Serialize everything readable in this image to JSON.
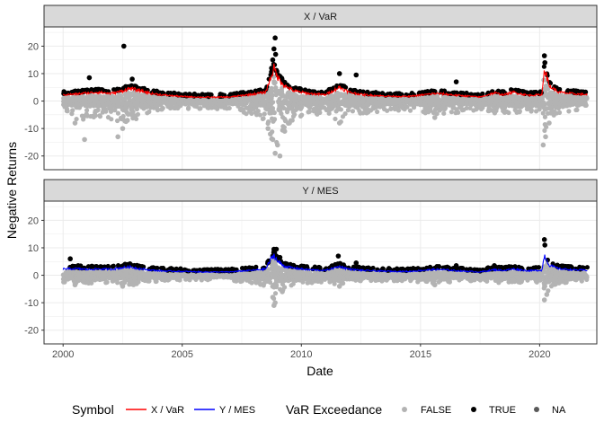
{
  "chart_data": {
    "type": "scatter",
    "xlabel": "Date",
    "ylabel": "Negative Returns",
    "xlim": [
      1999.2,
      2022.4
    ],
    "ylim": [
      -25,
      27
    ],
    "x_ticks": [
      2000,
      2005,
      2010,
      2015,
      2020
    ],
    "y_ticks": [
      -20,
      -10,
      0,
      10,
      20
    ],
    "grid": true,
    "legend_position": "bottom",
    "colors": {
      "x_var_line": "#ff0000",
      "y_mes_line": "#0000ff",
      "exceed_false": "#b3b3b3",
      "exceed_true": "#000000",
      "exceed_na": "#595959"
    },
    "legend": {
      "symbol_title": "Symbol",
      "symbol_items": [
        "X / VaR",
        "Y / MES"
      ],
      "exceed_title": "VaR Exceedance",
      "exceed_items": [
        "FALSE",
        "TRUE",
        "NA"
      ]
    },
    "panels": [
      {
        "strip": "X / VaR",
        "line_color_key": "x_var_line",
        "band_y": [
          [
            2000.0,
            2.5
          ],
          [
            2000.6,
            2.8
          ],
          [
            2001.0,
            3.2
          ],
          [
            2001.5,
            3.5
          ],
          [
            2002.0,
            3.0
          ],
          [
            2002.5,
            4.0
          ],
          [
            2002.8,
            5.0
          ],
          [
            2003.2,
            4.2
          ],
          [
            2003.7,
            3.0
          ],
          [
            2004.2,
            2.4
          ],
          [
            2005.0,
            1.8
          ],
          [
            2006.0,
            1.5
          ],
          [
            2007.0,
            1.6
          ],
          [
            2007.5,
            2.2
          ],
          [
            2008.0,
            2.8
          ],
          [
            2008.5,
            3.5
          ],
          [
            2008.7,
            9.0
          ],
          [
            2008.85,
            13.0
          ],
          [
            2009.0,
            9.5
          ],
          [
            2009.3,
            6.0
          ],
          [
            2009.7,
            4.0
          ],
          [
            2010.3,
            3.0
          ],
          [
            2011.0,
            2.5
          ],
          [
            2011.6,
            5.5
          ],
          [
            2012.0,
            3.5
          ],
          [
            2012.6,
            2.5
          ],
          [
            2013.5,
            2.0
          ],
          [
            2014.5,
            1.8
          ],
          [
            2015.6,
            3.0
          ],
          [
            2016.0,
            2.8
          ],
          [
            2016.5,
            2.3
          ],
          [
            2017.5,
            1.6
          ],
          [
            2018.1,
            3.2
          ],
          [
            2018.5,
            2.5
          ],
          [
            2018.9,
            3.5
          ],
          [
            2019.5,
            2.3
          ],
          [
            2020.1,
            2.5
          ],
          [
            2020.2,
            13.5
          ],
          [
            2020.4,
            6.0
          ],
          [
            2020.8,
            3.5
          ],
          [
            2021.5,
            2.8
          ],
          [
            2022.0,
            2.6
          ]
        ],
        "true_points": [
          [
            2002.55,
            20
          ],
          [
            2008.9,
            23
          ],
          [
            2008.85,
            19
          ],
          [
            2008.92,
            17
          ],
          [
            2008.8,
            15
          ],
          [
            2020.2,
            16.5
          ],
          [
            2020.22,
            14
          ],
          [
            2011.6,
            10
          ],
          [
            2012.3,
            9.5
          ],
          [
            2002.9,
            8
          ],
          [
            2008.75,
            12
          ],
          [
            2016.5,
            7
          ],
          [
            2001.1,
            8.5
          ],
          [
            2008.95,
            11
          ],
          [
            2009.1,
            9
          ]
        ],
        "false_points": [
          [
            2000.5,
            -8
          ],
          [
            2000.9,
            -14
          ],
          [
            2002.3,
            -13
          ],
          [
            2002.5,
            -10
          ],
          [
            2002.7,
            -7
          ],
          [
            2008.6,
            -10
          ],
          [
            2008.7,
            -12
          ],
          [
            2008.8,
            -14
          ],
          [
            2008.9,
            -19
          ],
          [
            2009.0,
            -16
          ],
          [
            2009.1,
            -20
          ],
          [
            2009.3,
            -11
          ],
          [
            2009.5,
            -8
          ],
          [
            2020.15,
            -16
          ],
          [
            2020.25,
            -13
          ],
          [
            2020.4,
            -8
          ],
          [
            2011.6,
            -8
          ],
          [
            2015.6,
            -6
          ]
        ],
        "dip_y": [
          [
            2000.0,
            -4
          ],
          [
            2000.6,
            -7
          ],
          [
            2001.0,
            -6.5
          ],
          [
            2001.5,
            -5.5
          ],
          [
            2002.0,
            -7
          ],
          [
            2002.5,
            -8
          ],
          [
            2002.8,
            -9
          ],
          [
            2003.2,
            -6
          ],
          [
            2003.7,
            -4.5
          ],
          [
            2004.2,
            -3.5
          ],
          [
            2005.0,
            -3
          ],
          [
            2006.0,
            -2.8
          ],
          [
            2007.0,
            -3
          ],
          [
            2007.5,
            -4.5
          ],
          [
            2008.0,
            -5
          ],
          [
            2008.5,
            -7
          ],
          [
            2008.7,
            -13
          ],
          [
            2008.85,
            -17
          ],
          [
            2009.0,
            -16
          ],
          [
            2009.3,
            -10
          ],
          [
            2009.7,
            -6.5
          ],
          [
            2010.3,
            -5
          ],
          [
            2011.0,
            -5
          ],
          [
            2011.6,
            -8
          ],
          [
            2012.0,
            -5.5
          ],
          [
            2012.6,
            -4.5
          ],
          [
            2013.5,
            -3.8
          ],
          [
            2014.5,
            -3.5
          ],
          [
            2015.6,
            -6
          ],
          [
            2016.0,
            -5
          ],
          [
            2016.5,
            -4.5
          ],
          [
            2017.5,
            -3
          ],
          [
            2018.1,
            -5
          ],
          [
            2018.5,
            -4.5
          ],
          [
            2018.9,
            -5
          ],
          [
            2019.5,
            -3.8
          ],
          [
            2020.1,
            -5
          ],
          [
            2020.2,
            -11
          ],
          [
            2020.4,
            -7
          ],
          [
            2020.8,
            -4.5
          ],
          [
            2021.5,
            -3.5
          ],
          [
            2022.0,
            -3
          ]
        ]
      },
      {
        "strip": "Y / MES",
        "line_color_key": "y_mes_line",
        "band_y": [
          [
            2000.0,
            2.5
          ],
          [
            2000.6,
            2.6
          ],
          [
            2001.0,
            2.3
          ],
          [
            2001.5,
            2.5
          ],
          [
            2002.0,
            2.4
          ],
          [
            2002.5,
            3.0
          ],
          [
            2002.8,
            3.3
          ],
          [
            2003.2,
            2.6
          ],
          [
            2003.7,
            2.0
          ],
          [
            2004.2,
            1.7
          ],
          [
            2005.0,
            1.5
          ],
          [
            2006.0,
            1.3
          ],
          [
            2007.0,
            1.3
          ],
          [
            2007.5,
            1.7
          ],
          [
            2008.0,
            2.0
          ],
          [
            2008.5,
            2.5
          ],
          [
            2008.7,
            6.0
          ],
          [
            2008.85,
            8.0
          ],
          [
            2009.0,
            5.5
          ],
          [
            2009.3,
            3.5
          ],
          [
            2009.7,
            2.8
          ],
          [
            2010.3,
            2.2
          ],
          [
            2011.0,
            1.9
          ],
          [
            2011.6,
            3.5
          ],
          [
            2012.0,
            2.4
          ],
          [
            2012.6,
            1.9
          ],
          [
            2013.5,
            1.6
          ],
          [
            2014.5,
            1.5
          ],
          [
            2015.6,
            2.3
          ],
          [
            2016.0,
            2.2
          ],
          [
            2016.5,
            1.8
          ],
          [
            2017.5,
            1.3
          ],
          [
            2018.1,
            2.2
          ],
          [
            2018.5,
            1.9
          ],
          [
            2018.9,
            2.5
          ],
          [
            2019.5,
            1.8
          ],
          [
            2020.1,
            2.0
          ],
          [
            2020.2,
            8.0
          ],
          [
            2020.4,
            4.0
          ],
          [
            2020.8,
            2.6
          ],
          [
            2021.5,
            2.1
          ],
          [
            2022.0,
            2.0
          ]
        ],
        "true_points": [
          [
            2020.2,
            13
          ],
          [
            2020.22,
            11
          ],
          [
            2008.85,
            9.5
          ],
          [
            2008.95,
            9.5
          ],
          [
            2008.8,
            7
          ],
          [
            2000.3,
            6
          ],
          [
            2011.55,
            7
          ],
          [
            2009.1,
            6.5
          ],
          [
            2002.6,
            4
          ],
          [
            2012.3,
            4.5
          ],
          [
            2016.5,
            3.5
          ],
          [
            2018.1,
            3.5
          ]
        ],
        "false_points": [
          [
            2008.85,
            -11
          ],
          [
            2008.9,
            -10
          ],
          [
            2008.8,
            -8
          ],
          [
            2020.2,
            -9
          ],
          [
            2020.3,
            -7
          ],
          [
            2000.5,
            -3.5
          ],
          [
            2002.5,
            -4
          ],
          [
            2009.2,
            -6
          ],
          [
            2011.6,
            -4
          ],
          [
            2015.6,
            -3.5
          ]
        ],
        "dip_y": [
          [
            2000.0,
            -2.5
          ],
          [
            2000.6,
            -3
          ],
          [
            2001.0,
            -3
          ],
          [
            2001.5,
            -2.8
          ],
          [
            2002.0,
            -3
          ],
          [
            2002.5,
            -3.5
          ],
          [
            2002.8,
            -4
          ],
          [
            2003.2,
            -3
          ],
          [
            2003.7,
            -2.5
          ],
          [
            2004.2,
            -2
          ],
          [
            2005.0,
            -1.8
          ],
          [
            2006.0,
            -1.8
          ],
          [
            2007.0,
            -1.8
          ],
          [
            2007.5,
            -2.5
          ],
          [
            2008.0,
            -3
          ],
          [
            2008.5,
            -4
          ],
          [
            2008.7,
            -7
          ],
          [
            2008.85,
            -9
          ],
          [
            2009.0,
            -8
          ],
          [
            2009.3,
            -5
          ],
          [
            2009.7,
            -3.5
          ],
          [
            2010.3,
            -2.8
          ],
          [
            2011.0,
            -2.8
          ],
          [
            2011.6,
            -4
          ],
          [
            2012.0,
            -3
          ],
          [
            2012.6,
            -2.5
          ],
          [
            2013.5,
            -2.2
          ],
          [
            2014.5,
            -2
          ],
          [
            2015.6,
            -3.2
          ],
          [
            2016.0,
            -3
          ],
          [
            2016.5,
            -2.6
          ],
          [
            2017.5,
            -1.8
          ],
          [
            2018.1,
            -3
          ],
          [
            2018.5,
            -2.6
          ],
          [
            2018.9,
            -3
          ],
          [
            2019.5,
            -2.2
          ],
          [
            2020.1,
            -3
          ],
          [
            2020.2,
            -8
          ],
          [
            2020.4,
            -5
          ],
          [
            2020.8,
            -3
          ],
          [
            2021.5,
            -2.3
          ],
          [
            2022.0,
            -2
          ]
        ]
      }
    ]
  }
}
